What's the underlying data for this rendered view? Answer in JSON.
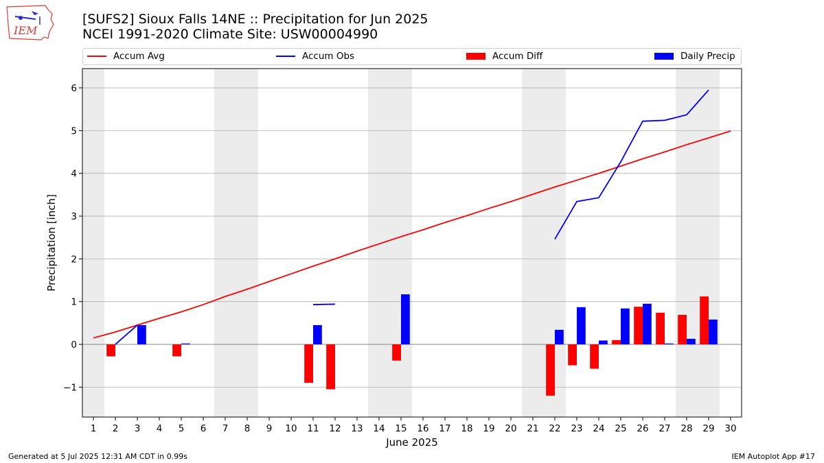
{
  "header": {
    "title_line1": "[SUFS2] Sioux Falls 14NE :: Precipitation for Jun 2025",
    "title_line2": "NCEI 1991-2020 Climate Site: USW00004990",
    "logo_text": "IEM"
  },
  "legend": {
    "items": [
      {
        "label": "Accum Avg",
        "kind": "line",
        "color": "#ff0000"
      },
      {
        "label": "Accum Obs",
        "kind": "line",
        "color": "#0000ff"
      },
      {
        "label": "Accum Diff",
        "kind": "box",
        "color": "#ff0000"
      },
      {
        "label": "Daily Precip",
        "kind": "box",
        "color": "#0000ff"
      }
    ]
  },
  "footer": {
    "left": "Generated at 5 Jul 2025 12:31 AM CDT in 0.99s",
    "right": "IEM Autoplot App #17"
  },
  "chart_data": {
    "type": "bar",
    "xlabel": "June 2025",
    "ylabel": "Precipitation [inch]",
    "ylim": [
      -1.7,
      6.45
    ],
    "xlim": [
      0.5,
      30.5
    ],
    "yticks": [
      -1,
      0,
      1,
      2,
      3,
      4,
      5,
      6
    ],
    "ytick_labels": [
      "−1",
      "0",
      "1",
      "2",
      "3",
      "4",
      "5",
      "6"
    ],
    "categories": [
      "1",
      "2",
      "3",
      "4",
      "5",
      "6",
      "7",
      "8",
      "9",
      "10",
      "11",
      "12",
      "13",
      "14",
      "15",
      "16",
      "17",
      "18",
      "19",
      "20",
      "21",
      "22",
      "23",
      "24",
      "25",
      "26",
      "27",
      "28",
      "29",
      "30"
    ],
    "grid": "horizontal",
    "weekend_shading": [
      [
        0.5,
        1.5
      ],
      [
        6.5,
        8.5
      ],
      [
        13.5,
        15.5
      ],
      [
        20.5,
        22.5
      ],
      [
        27.5,
        29.5
      ]
    ],
    "series": [
      {
        "name": "Accum Avg",
        "kind": "line",
        "color": "#ff0000",
        "values": [
          0.15,
          0.29,
          0.45,
          0.61,
          0.76,
          0.93,
          1.12,
          1.29,
          1.47,
          1.65,
          1.83,
          2.0,
          2.18,
          2.35,
          2.52,
          2.68,
          2.85,
          3.01,
          3.18,
          3.34,
          3.51,
          3.68,
          3.84,
          4.0,
          4.17,
          4.34,
          4.5,
          4.67,
          4.83,
          4.99
        ]
      },
      {
        "name": "Accum Obs",
        "kind": "line",
        "color": "#0000ff",
        "segments": [
          {
            "x": [
              2,
              3
            ],
            "y": [
              0.0,
              0.45
            ]
          },
          {
            "x": [
              11,
              12
            ],
            "y": [
              0.93,
              0.94
            ]
          },
          {
            "x": [
              22,
              23,
              24,
              25,
              26,
              27,
              28,
              29
            ],
            "y": [
              2.46,
              3.34,
              3.43,
              4.27,
              5.22,
              5.24,
              5.37,
              5.95
            ]
          }
        ]
      },
      {
        "name": "Accum Diff",
        "kind": "bar",
        "color": "#ff0000",
        "values": [
          null,
          -0.28,
          null,
          null,
          -0.28,
          null,
          null,
          null,
          null,
          null,
          -0.9,
          -1.05,
          null,
          null,
          -0.38,
          null,
          null,
          null,
          null,
          null,
          null,
          -1.2,
          -0.49,
          -0.57,
          0.1,
          0.88,
          0.74,
          0.69,
          1.12,
          null
        ]
      },
      {
        "name": "Daily Precip",
        "kind": "bar",
        "color": "#0000ff",
        "values": [
          null,
          null,
          0.45,
          null,
          0.02,
          null,
          null,
          null,
          null,
          null,
          0.45,
          null,
          null,
          null,
          1.17,
          null,
          null,
          null,
          null,
          null,
          null,
          0.34,
          0.87,
          0.09,
          0.84,
          0.95,
          0.02,
          0.13,
          0.58,
          null
        ]
      }
    ]
  }
}
